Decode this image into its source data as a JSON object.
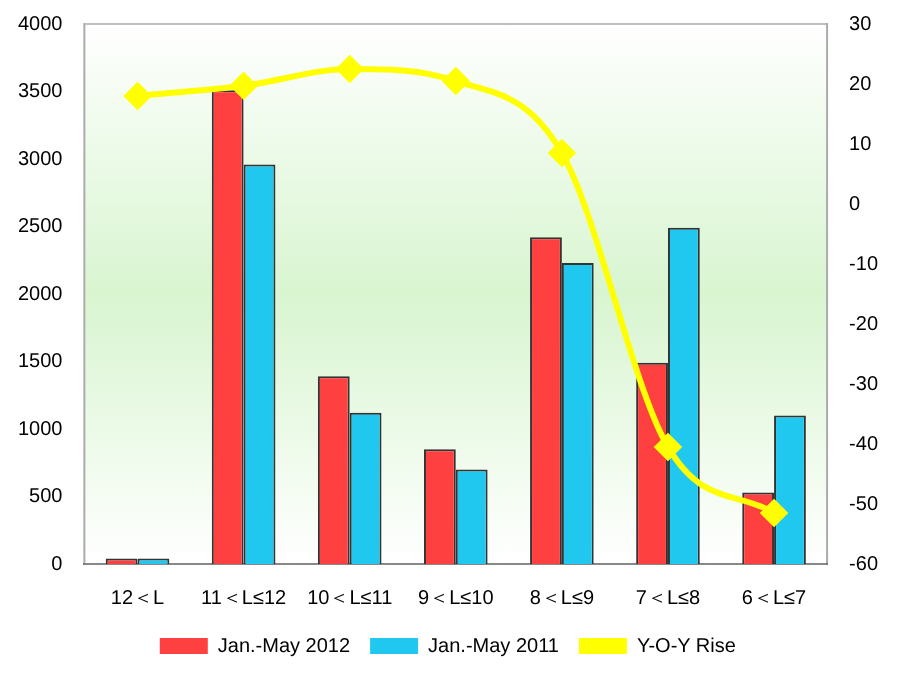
{
  "chart_data": {
    "type": "bar",
    "categories": [
      "12＜L",
      "11＜L≤12",
      "10＜L≤11",
      "9＜L≤10",
      "8＜L≤9",
      "7＜L≤8",
      "6＜L≤7"
    ],
    "series": [
      {
        "name": "Jan.-May 2012",
        "color": "#ff4040",
        "values": [
          40,
          3510,
          1390,
          850,
          2420,
          1490,
          530
        ]
      },
      {
        "name": "Jan.-May 2011",
        "color": "#20c8f0",
        "values": [
          40,
          2960,
          1120,
          700,
          2230,
          2490,
          1100
        ]
      },
      {
        "name": "Y-O-Y Rise",
        "type": "line",
        "axis": "y2",
        "color": "#ffff00",
        "marker": "diamond",
        "values": [
          18,
          19.7,
          22.5,
          20.5,
          8.5,
          -40.5,
          -51.5
        ]
      }
    ],
    "ylim": [
      0,
      4000
    ],
    "yticks": [
      0,
      500,
      1000,
      1500,
      2000,
      2500,
      3000,
      3500,
      4000
    ],
    "y2lim": [
      -60,
      30
    ],
    "y2ticks": [
      -60,
      -50,
      -40,
      -30,
      -20,
      -10,
      0,
      10,
      20,
      30
    ],
    "legend": "bottom",
    "grid": false
  }
}
